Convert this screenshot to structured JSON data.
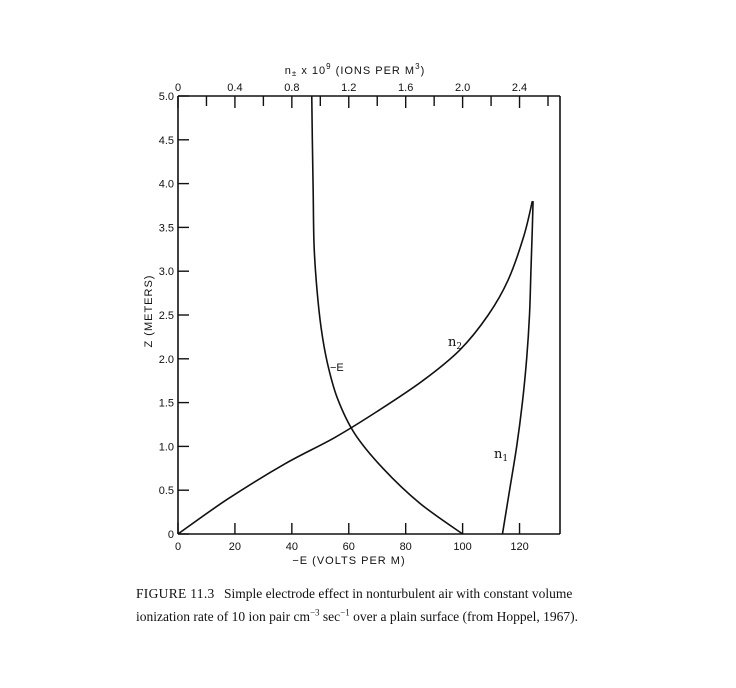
{
  "chart_data": {
    "type": "line",
    "title": "",
    "xlabel": "−E (VOLTS PER M)",
    "x2label_html": "n<tspan font-size='8' dy='2'>±</tspan><tspan dy='-2'> x 10</tspan><tspan font-size='8' dy='-5'>9</tspan><tspan dy='5'> (IONS PER M</tspan><tspan font-size='8' dy='-5'>3</tspan><tspan dy='5'>)</tspan>",
    "ylabel": "Z (METERS)",
    "xlim": [
      0,
      130
    ],
    "x2lim": [
      0,
      2.6
    ],
    "ylim": [
      0,
      5.0
    ],
    "x_ticks": [
      0,
      20,
      40,
      60,
      80,
      100,
      120
    ],
    "x_tick_labels": [
      "0",
      "20",
      "40",
      "60",
      "80",
      "100",
      "120"
    ],
    "x2_ticks": [
      0,
      0.4,
      0.8,
      1.2,
      1.6,
      2.0,
      2.4
    ],
    "x2_tick_labels": [
      "0",
      "0.4",
      "0.8",
      "1.2",
      "1.6",
      "2.0",
      "2.4"
    ],
    "y_ticks": [
      0,
      0.5,
      1.0,
      1.5,
      2.0,
      2.5,
      3.0,
      3.5,
      4.0,
      4.5,
      5.0
    ],
    "y_tick_labels": [
      "0",
      "0.5",
      "1.0",
      "1.5",
      "2.0",
      "2.5",
      "3.0",
      "3.5",
      "4.0",
      "4.5",
      "5.0"
    ],
    "series": [
      {
        "name": "−E",
        "axis": "bottom",
        "x": [
          100,
          85,
          72,
          62,
          56,
          52.5,
          50.3,
          48.8,
          47.8,
          47.5,
          47.2,
          47.0
        ],
        "y": [
          0,
          0.35,
          0.75,
          1.15,
          1.55,
          1.95,
          2.35,
          2.8,
          3.3,
          3.9,
          4.5,
          5.0
        ]
      },
      {
        "name": "n",
        "sub": "1",
        "axis": "top",
        "x": [
          2.28,
          2.33,
          2.38,
          2.42,
          2.45,
          2.47,
          2.48,
          2.49,
          2.495
        ],
        "y": [
          0,
          0.5,
          1.0,
          1.5,
          2.0,
          2.5,
          3.0,
          3.5,
          3.8
        ]
      },
      {
        "name": "n",
        "sub": "2",
        "axis": "top",
        "x": [
          0,
          0.35,
          0.75,
          1.1,
          1.4,
          1.72,
          1.98,
          2.18,
          2.32,
          2.43,
          2.49
        ],
        "y": [
          0,
          0.4,
          0.8,
          1.1,
          1.4,
          1.75,
          2.1,
          2.5,
          2.9,
          3.4,
          3.8
        ]
      }
    ]
  },
  "caption": {
    "figure_label": "FIGURE 11.3",
    "text_html": "Simple electrode effect in nonturbulent air with constant volume ionization rate of 10 ion pair cm<sup style='font-size:9px'>−3</sup> sec<sup style='font-size:9px'>−1</sup> over a plain surface (from Hoppel, 1967)."
  }
}
